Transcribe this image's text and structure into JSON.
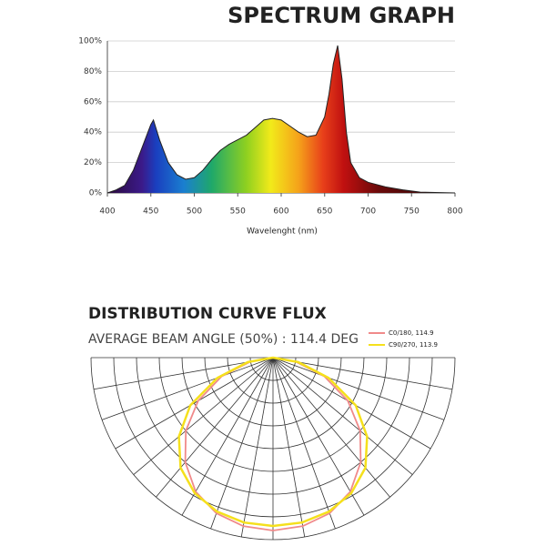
{
  "chart_data": [
    {
      "type": "area",
      "title": "SPECTRUM GRAPH",
      "xlabel": "Wavelenght (nm)",
      "x": [
        400,
        410,
        420,
        430,
        440,
        450,
        453,
        460,
        470,
        480,
        490,
        500,
        510,
        520,
        530,
        540,
        550,
        560,
        570,
        580,
        590,
        600,
        610,
        620,
        630,
        640,
        650,
        655,
        660,
        665,
        670,
        675,
        680,
        690,
        700,
        720,
        740,
        760,
        800
      ],
      "values": [
        0,
        2,
        5,
        15,
        30,
        45,
        48,
        35,
        20,
        12,
        9,
        10,
        15,
        22,
        28,
        32,
        35,
        38,
        43,
        48,
        49,
        48,
        44,
        40,
        37,
        38,
        50,
        65,
        85,
        97,
        75,
        40,
        20,
        10,
        7,
        4,
        2,
        0.5,
        0
      ],
      "xlim": [
        400,
        800
      ],
      "xticks": [
        400,
        450,
        500,
        550,
        600,
        650,
        700,
        750,
        800
      ],
      "ylim": [
        0,
        100
      ],
      "yticks": [
        {
          "value": 0,
          "label": "0%"
        },
        {
          "value": 20,
          "label": "20%"
        },
        {
          "value": 40,
          "label": "40%"
        },
        {
          "value": 60,
          "label": "60%"
        },
        {
          "value": 80,
          "label": "80%"
        },
        {
          "value": 100,
          "label": "100%"
        }
      ],
      "grid": true
    },
    {
      "type": "polar",
      "title": "DISTRIBUTION CURVE FLUX",
      "subtitle": "AVERAGE BEAM ANGLE  (50%) : 114.4 DEG",
      "theta": [
        -90,
        -80,
        -70,
        -60,
        -50,
        -40,
        -30,
        -20,
        -10,
        0,
        10,
        20,
        30,
        40,
        50,
        60,
        70,
        80,
        90
      ],
      "rlim": [
        0,
        200
      ],
      "series": [
        {
          "name": "C0/180, 114.9",
          "color": "#f08a8a",
          "values": [
            0,
            25,
            60,
            95,
            125,
            150,
            170,
            182,
            188,
            190,
            188,
            182,
            170,
            150,
            125,
            95,
            60,
            25,
            0
          ]
        },
        {
          "name": "C90/270, 113.9",
          "color": "#f5e01c",
          "values": [
            0,
            28,
            65,
            105,
            135,
            158,
            172,
            180,
            184,
            185,
            184,
            180,
            172,
            158,
            135,
            105,
            65,
            28,
            0
          ]
        }
      ]
    }
  ]
}
